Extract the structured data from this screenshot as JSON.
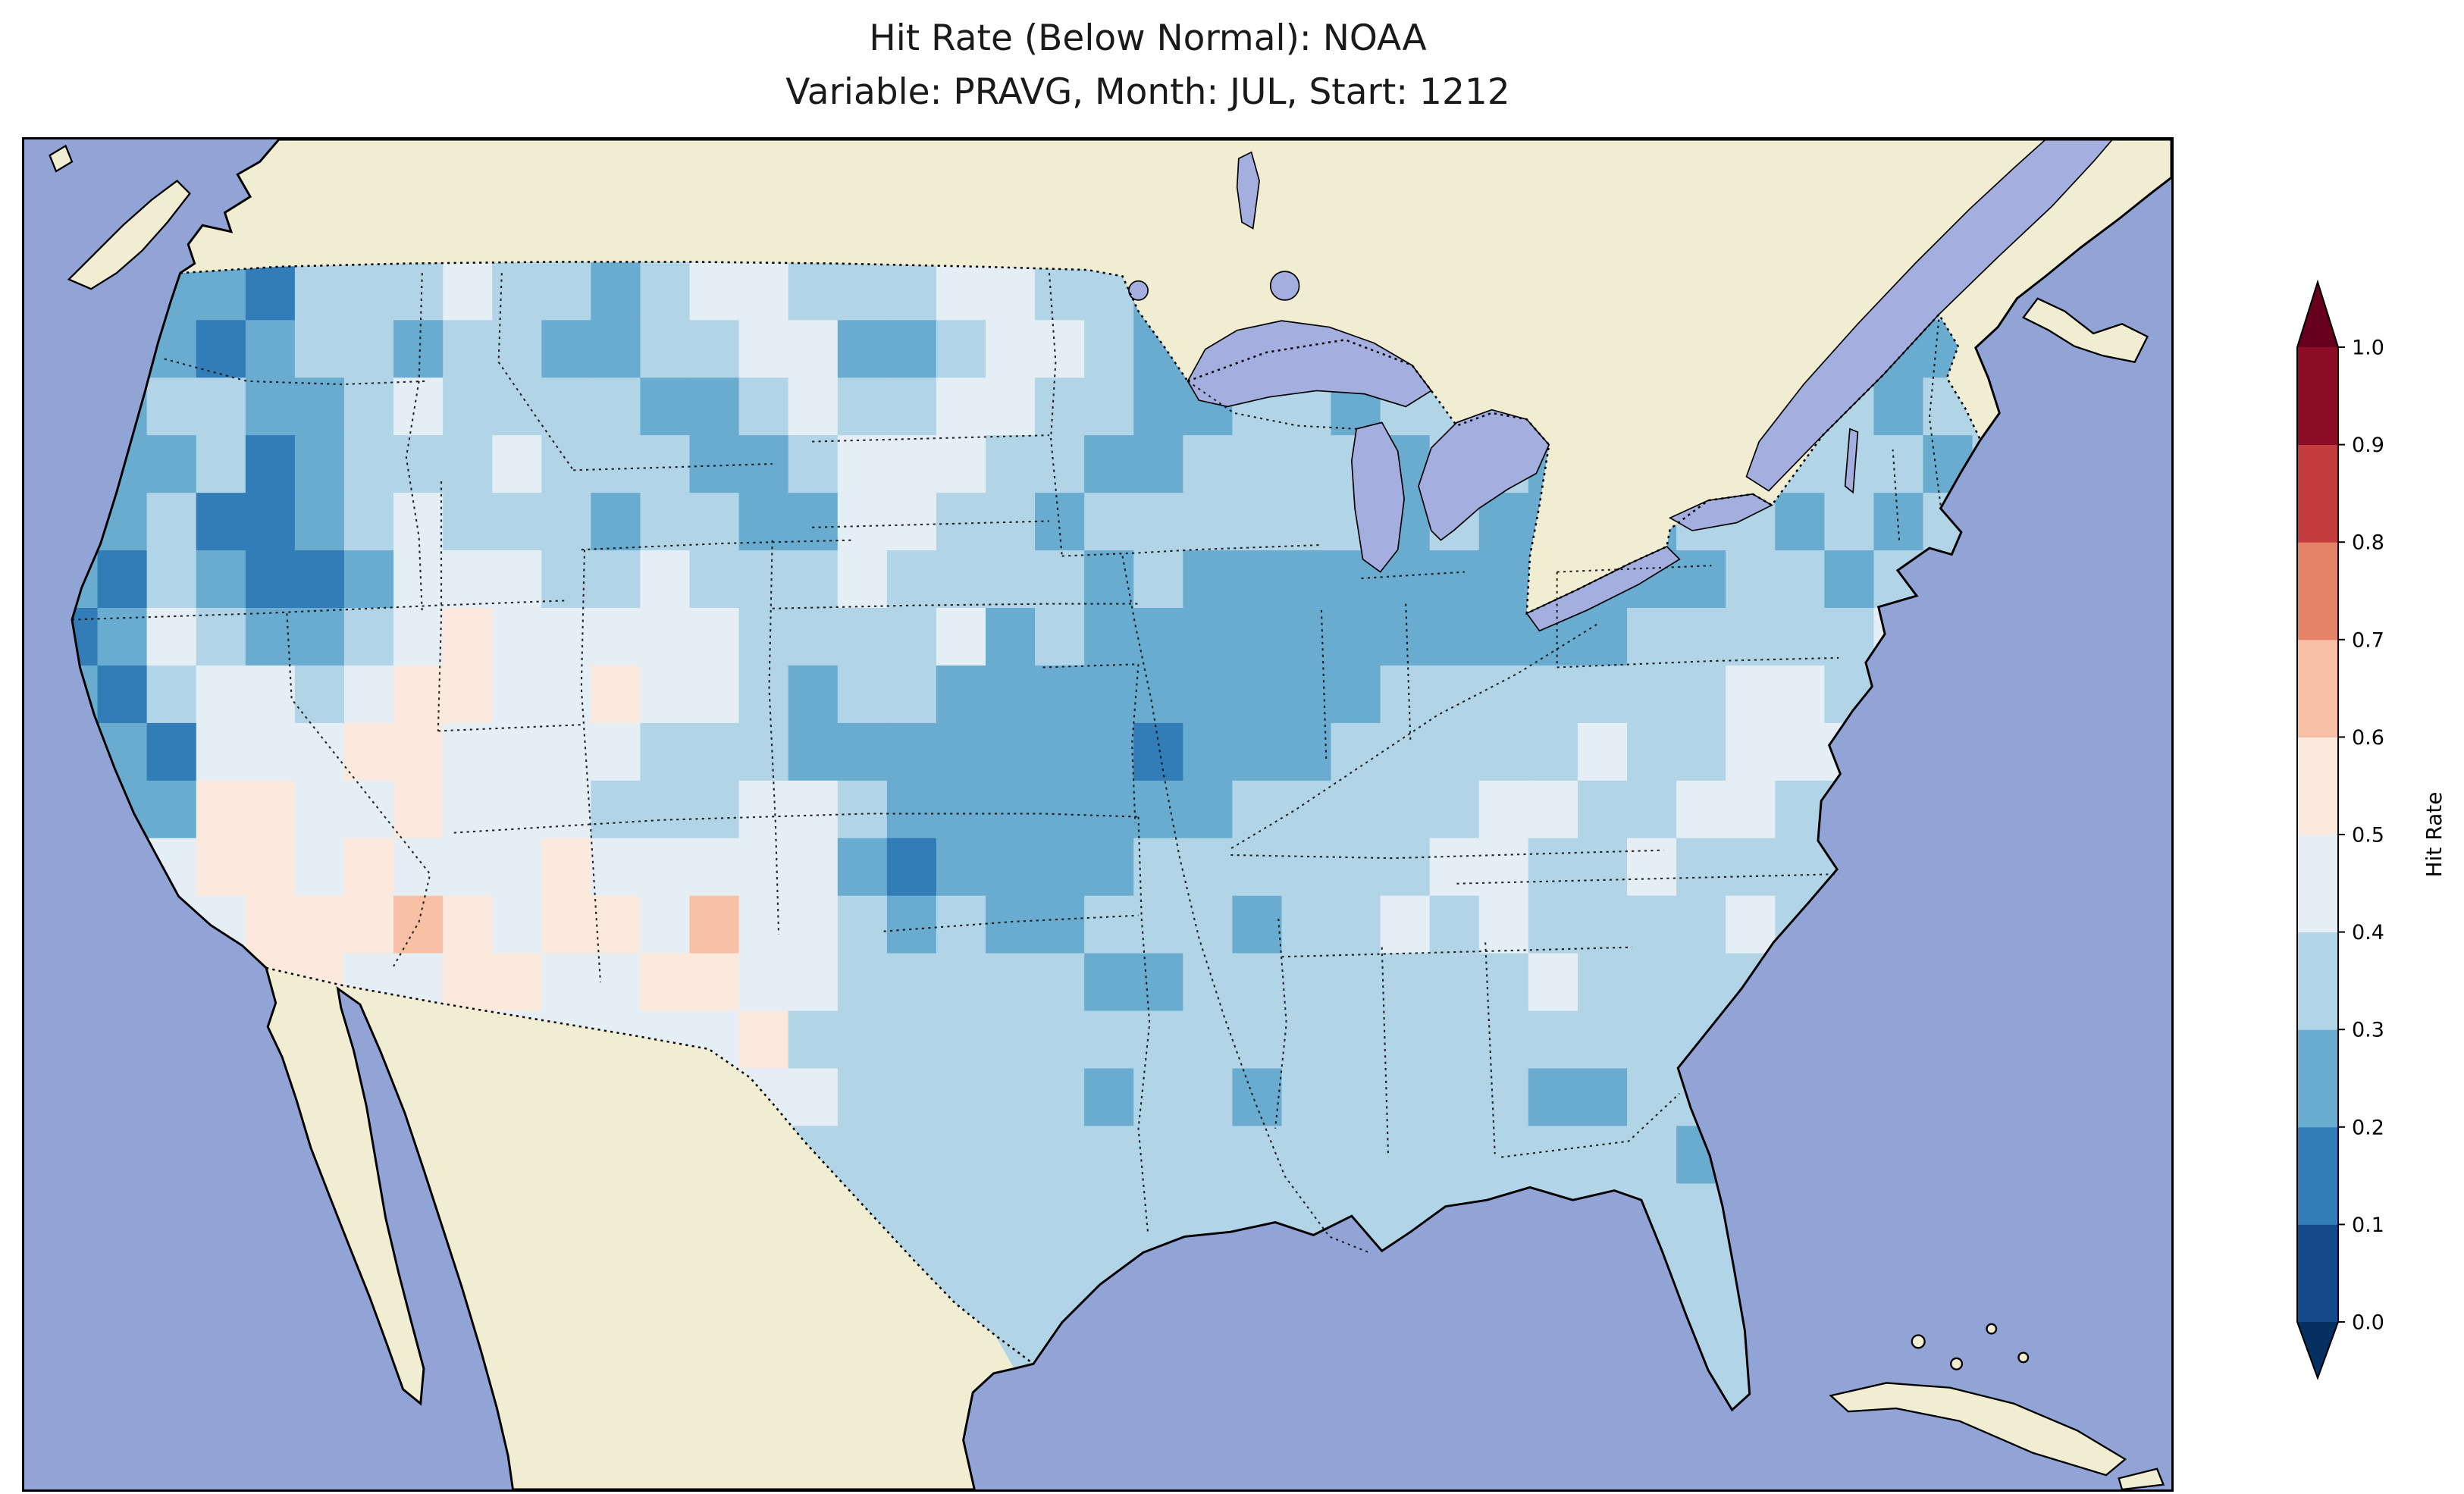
{
  "title": {
    "line1": "Hit Rate (Below Normal): NOAA",
    "line2": "Variable: PRAVG, Month: JUL, Start: 1212"
  },
  "colorbar": {
    "label": "Hit Rate",
    "ticks": [
      "1.0",
      "0.9",
      "0.8",
      "0.7",
      "0.6",
      "0.5",
      "0.4",
      "0.3",
      "0.2",
      "0.1",
      "0.0"
    ],
    "bin_colors_low_to_high": [
      "#14498a",
      "#327cb7",
      "#6aacd0",
      "#b1d5e7",
      "#e4eef4",
      "#fae9dc",
      "#f8c0a4",
      "#e58368",
      "#c43c3d",
      "#8d0c25"
    ],
    "extend_low_color": "#053061",
    "extend_high_color": "#67001f"
  },
  "map_colors": {
    "ocean": "#92a3d6",
    "land": "#f1edd3",
    "lakes": "#a4afdf",
    "coastline": "#000000"
  },
  "chart_data": {
    "type": "heatmap",
    "title": "Hit Rate (Below Normal): NOAA",
    "subtitle": "Variable: PRAVG, Month: JUL, Start: 1212",
    "colorbar_label": "Hit Rate",
    "region": "Contiguous United States",
    "value_range": [
      0.0,
      1.0
    ],
    "bin_width": 0.1,
    "legend_position": "right",
    "grid_encoding": "Each character is a hit-rate bin index 0-9 (value = 0.05 + 0.1 * index); rows run north to south across the map, columns west to east; cells are clipped to the U.S. boundary.",
    "grid_rows": [
      "3333333333333333333333333333333333333333",
      "3333333333333333333333333333333333333333",
      "3322133343323443334433233333333333333333",
      "2321233233223344223443223333333333333223",
      "3233223433332234334433223323333333223233",
      "3223123334333223444332233332332333233323",
      "1231123433323322443323333332322323323233",
      "2132112444334333433332322222222222332333",
      "1243223454444433334232222222222233333433",
      "2134434554454432332222222223333333443343",
      "2214445544443332222222122233333433444333",
      "3225544544433344322222223333344334433333",
      "3345545444544444212222333333443343333333",
      "3344555654554644323223332334343333433333",
      "3336554455445544333332233333334333333333",
      "3333445444444453333333333333333333333333",
      "3333334444444544333332332333332233333333",
      "3333333344444443333333333333333332322333",
      "3333333333334444333333333333333333322333",
      "3333333333333443333333333333333333332233",
      "3333333333333333333333333333333333332233",
      "3333333333333333333333333333333333333333"
    ],
    "summary": "Hit rates over the contiguous U.S. are mostly 0.2-0.5 (blues). Lowest values (0.1-0.2, dark blue) appear over the northern California coast, northwest Nevada, the north Cascades, and parts of the Ohio Valley / Midwest and Arkansas. Highest values (0.5-0.7, pale peach) appear in small patches over Arizona, Utah and west-central Texas."
  }
}
